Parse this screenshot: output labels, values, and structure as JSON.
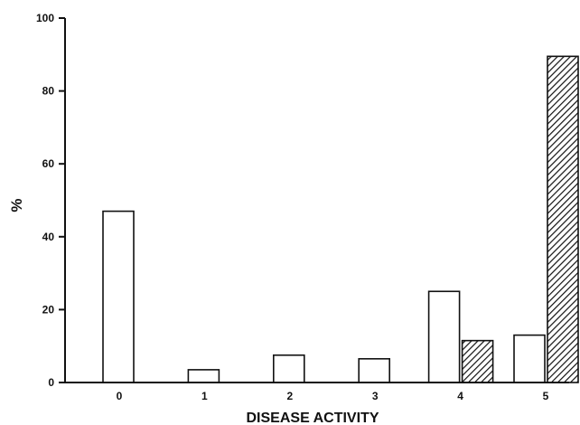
{
  "chart_data": {
    "type": "bar",
    "xlabel": "DISEASE ACTIVITY",
    "ylabel": "%",
    "categories": [
      "0",
      "1",
      "2",
      "3",
      "4",
      "5"
    ],
    "ylim": [
      0,
      100
    ],
    "yticks": [
      0,
      20,
      40,
      60,
      80,
      100
    ],
    "grid": false,
    "legend": "none",
    "series": [
      {
        "style": "open",
        "fill": "#ffffff",
        "values": [
          47,
          3.5,
          7.5,
          6.5,
          25,
          13
        ]
      },
      {
        "style": "hatched",
        "fill": "#000000",
        "values": [
          0,
          0,
          0,
          0,
          11.5,
          89.5
        ]
      }
    ]
  }
}
